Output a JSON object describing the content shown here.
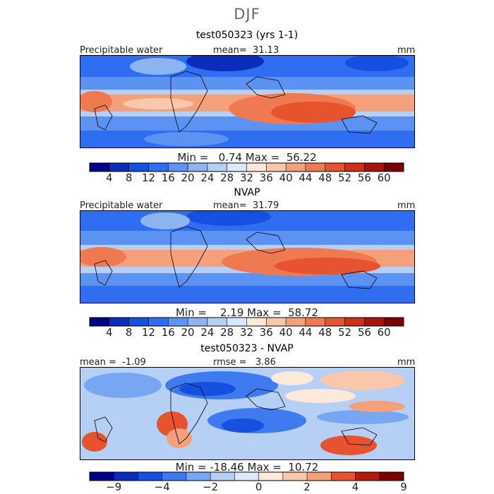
{
  "figure": {
    "title": "DJF"
  },
  "panels": [
    {
      "title": "test050323 (yrs 1-1)",
      "left_label": "Precipitable water",
      "stat_label": "mean=",
      "stat_value": "31.13",
      "stat2_label": "",
      "stat2_value": "",
      "units": "mm",
      "min_label": "Min =",
      "min_value": "0.74",
      "max_label": "Max =",
      "max_value": "56.22",
      "colorbar": {
        "colors": [
          "#00008b",
          "#0a2dbc",
          "#1550e0",
          "#2f6ef2",
          "#5c93f2",
          "#8cb4f0",
          "#b6d0f5",
          "#dce8fb",
          "#fde9d9",
          "#f9c8aa",
          "#f4a07a",
          "#ef7a52",
          "#e5532f",
          "#cc3118",
          "#a8140b",
          "#7d0000"
        ],
        "tick_labels": [
          "4",
          "8",
          "12",
          "16",
          "20",
          "24",
          "28",
          "32",
          "36",
          "40",
          "44",
          "48",
          "52",
          "56",
          "60"
        ]
      }
    },
    {
      "title": "NVAP",
      "left_label": "Precipitable water",
      "stat_label": "mean=",
      "stat_value": "31.79",
      "stat2_label": "",
      "stat2_value": "",
      "units": "mm",
      "min_label": "Min =",
      "min_value": "2.19",
      "max_label": "Max =",
      "max_value": "58.72",
      "colorbar": {
        "colors": [
          "#00008b",
          "#0a2dbc",
          "#1550e0",
          "#2f6ef2",
          "#5c93f2",
          "#8cb4f0",
          "#b6d0f5",
          "#dce8fb",
          "#fde9d9",
          "#f9c8aa",
          "#f4a07a",
          "#ef7a52",
          "#e5532f",
          "#cc3118",
          "#a8140b",
          "#7d0000"
        ],
        "tick_labels": [
          "4",
          "8",
          "12",
          "16",
          "20",
          "24",
          "28",
          "32",
          "36",
          "40",
          "44",
          "48",
          "52",
          "56",
          "60"
        ]
      }
    },
    {
      "title": "test050323 - NVAP",
      "left_label": "mean =",
      "left_value": "-1.09",
      "stat_label": "rmse =",
      "stat_value": "3.86",
      "units": "mm",
      "min_label": "Min =",
      "min_value": "-18.46",
      "max_label": "Max =",
      "max_value": "10.72",
      "colorbar": {
        "colors": [
          "#00008b",
          "#0a2dbc",
          "#1550e0",
          "#3f7af0",
          "#78a6f2",
          "#b6d0f5",
          "#dce8fb",
          "#fde9d9",
          "#f9c8aa",
          "#f4a07a",
          "#e5532f",
          "#b31a10",
          "#7d0000"
        ],
        "tick_labels": [
          "-9",
          "-4",
          "-2",
          "0",
          "2",
          "4",
          "9"
        ],
        "tick_boundary_index": [
          1,
          3,
          5,
          7,
          9,
          11,
          13
        ]
      }
    }
  ],
  "chart_data": [
    {
      "type": "heatmap",
      "title": "test050323 (yrs 1-1)",
      "variable": "Precipitable water",
      "units": "mm",
      "mean": 31.13,
      "min": 0.74,
      "max": 56.22,
      "contour_levels": [
        4,
        8,
        12,
        16,
        20,
        24,
        28,
        32,
        36,
        40,
        44,
        48,
        52,
        56,
        60
      ]
    },
    {
      "type": "heatmap",
      "title": "NVAP",
      "variable": "Precipitable water",
      "units": "mm",
      "mean": 31.79,
      "min": 2.19,
      "max": 58.72,
      "contour_levels": [
        4,
        8,
        12,
        16,
        20,
        24,
        28,
        32,
        36,
        40,
        44,
        48,
        52,
        56,
        60
      ]
    },
    {
      "type": "heatmap",
      "title": "test050323 - NVAP",
      "units": "mm",
      "mean": -1.09,
      "rmse": 3.86,
      "min": -18.46,
      "max": 10.72,
      "contour_levels": [
        -9,
        -4,
        -2,
        0,
        2,
        4,
        9
      ]
    }
  ]
}
